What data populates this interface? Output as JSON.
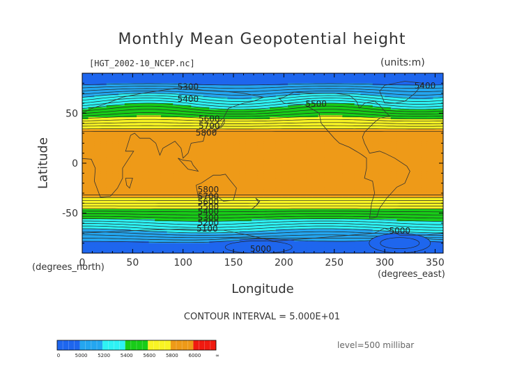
{
  "chart_data": {
    "type": "heatmap",
    "title": "Monthly Mean Geopotential height",
    "subtitle_file": "[HGT_2002-10_NCEP.nc]",
    "units": "(units:m)",
    "xlabel": "Longitude",
    "ylabel": "Latitude",
    "x_units": "(degrees_east)",
    "y_units": "(degrees_north)",
    "xlim": [
      0,
      358
    ],
    "ylim": [
      -90,
      90
    ],
    "x_ticks": [
      0,
      50,
      100,
      150,
      200,
      250,
      300,
      350
    ],
    "y_ticks": [
      50,
      0,
      -50
    ],
    "contour_interval": "CONTOUR INTERVAL = 5.000E+01",
    "level": "level=500 millibar",
    "contour_labels": [
      {
        "text": "5300",
        "lon": 105,
        "lat": 76
      },
      {
        "text": "5400",
        "lon": 105,
        "lat": 64
      },
      {
        "text": "5500",
        "lon": 232,
        "lat": 59
      },
      {
        "text": "5400",
        "lon": 340,
        "lat": 77
      },
      {
        "text": "5600",
        "lon": 126,
        "lat": 44
      },
      {
        "text": "5700",
        "lon": 126,
        "lat": 37
      },
      {
        "text": "5800",
        "lon": 123,
        "lat": 30
      },
      {
        "text": "5800",
        "lon": 125,
        "lat": -27
      },
      {
        "text": "5700",
        "lon": 125,
        "lat": -34
      },
      {
        "text": "5600",
        "lon": 125,
        "lat": -39
      },
      {
        "text": "5500",
        "lon": 125,
        "lat": -44
      },
      {
        "text": "5400",
        "lon": 125,
        "lat": -49
      },
      {
        "text": "5300",
        "lon": 125,
        "lat": -55
      },
      {
        "text": "5200",
        "lon": 125,
        "lat": -60
      },
      {
        "text": "5100",
        "lon": 124,
        "lat": -66
      },
      {
        "text": "5000",
        "lon": 315,
        "lat": -68
      },
      {
        "text": "5000",
        "lon": 177,
        "lat": -86
      }
    ],
    "colorbar": {
      "labels": [
        "0",
        "5000",
        "5200",
        "5400",
        "5600",
        "5800",
        "6000",
        "∞"
      ],
      "bins": [
        {
          "from": "0",
          "to": "5000",
          "color": "#1e66ee"
        },
        {
          "from": "5000",
          "to": "5200",
          "color": "#24a6f0"
        },
        {
          "from": "5200",
          "to": "5400",
          "color": "#2ef2f4"
        },
        {
          "from": "5400",
          "to": "5600",
          "color": "#18cc18"
        },
        {
          "from": "5600",
          "to": "5800",
          "color": "#f8f424"
        },
        {
          "from": "5800",
          "to": "6000",
          "color": "#ee9a18"
        },
        {
          "from": "6000",
          "to": "∞",
          "color": "#f01a10"
        }
      ]
    }
  }
}
